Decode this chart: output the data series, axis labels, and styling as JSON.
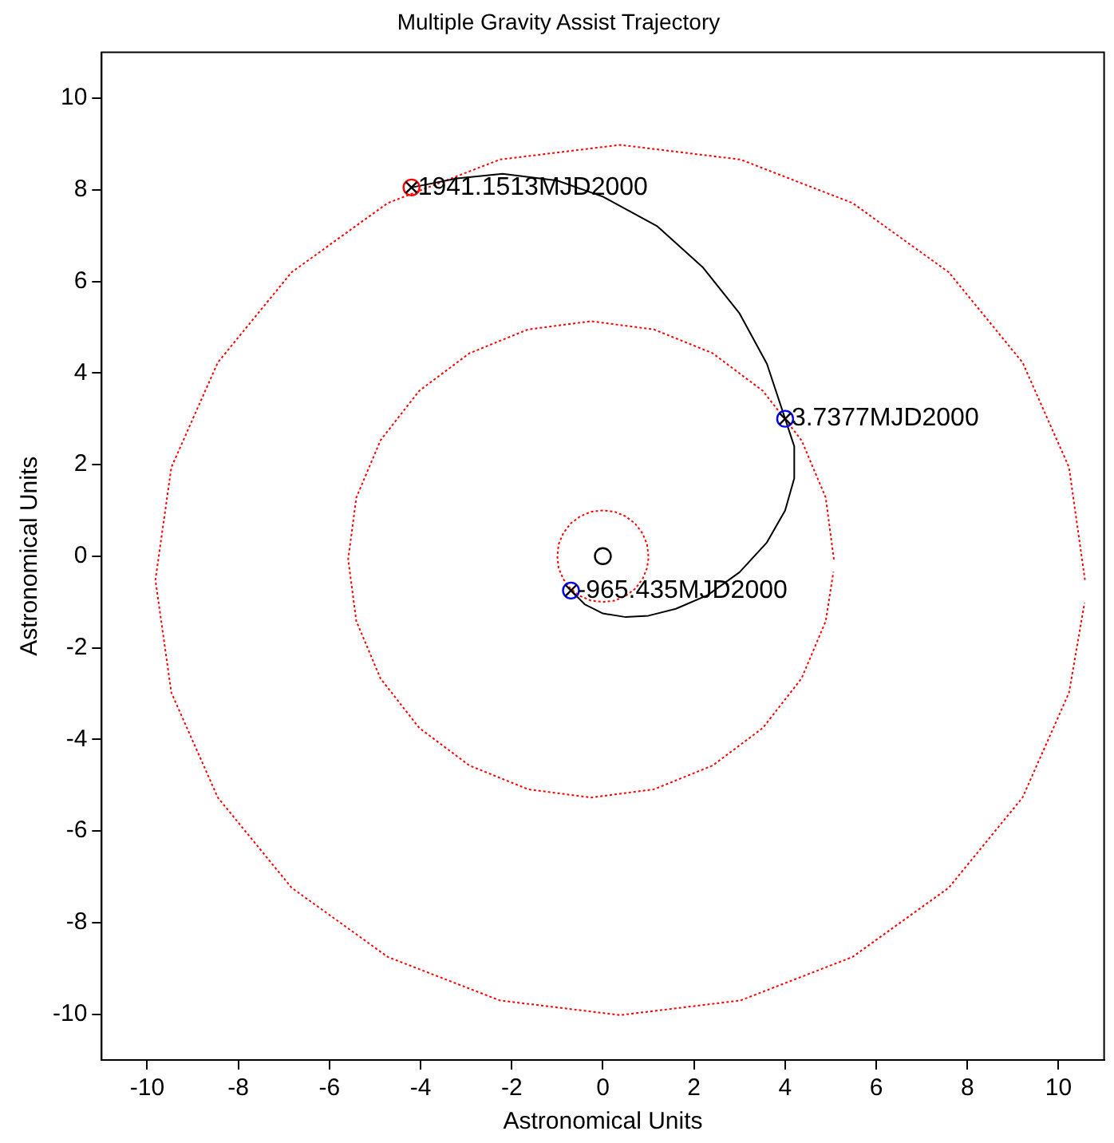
{
  "chart_data": {
    "type": "line",
    "title": "Multiple Gravity Assist Trajectory",
    "xlabel": "Astronomical Units",
    "ylabel": "Astronomical Units",
    "xlim": [
      -11,
      11
    ],
    "ylim": [
      -11,
      11
    ],
    "xticks": [
      -10,
      -8,
      -6,
      -4,
      -2,
      0,
      2,
      4,
      6,
      8,
      10
    ],
    "yticks": [
      -10,
      -8,
      -6,
      -4,
      -2,
      0,
      2,
      4,
      6,
      8,
      10
    ],
    "grid": false,
    "legend": false,
    "series": [
      {
        "type": "line",
        "line_style": "dotted",
        "marker": "none",
        "color": "#ff0000",
        "x": [
          1,
          0.97,
          0.87,
          0.71,
          0.5,
          0.26,
          0,
          -0.26,
          -0.5,
          -0.71,
          -0.87,
          -0.97,
          -1,
          -0.97,
          -0.87,
          -0.71,
          -0.5,
          -0.26,
          0,
          0.26,
          0.5,
          0.71,
          0.87,
          0.97,
          1
        ],
        "values": [
          0,
          0.26,
          0.5,
          0.71,
          0.87,
          0.97,
          1,
          0.97,
          0.87,
          0.71,
          0.5,
          0.26,
          0,
          -0.26,
          -0.5,
          -0.71,
          -0.87,
          -0.97,
          -1,
          -0.97,
          -0.87,
          -0.71,
          -0.5,
          -0.26,
          -0.05
        ]
      },
      {
        "type": "line",
        "line_style": "dotted",
        "marker": "none",
        "color": "#ff0000",
        "x": [
          5.07,
          4.89,
          4.36,
          3.51,
          2.41,
          1.12,
          -0.26,
          -1.64,
          -2.93,
          -4.03,
          -4.88,
          -5.41,
          -5.59,
          -5.41,
          -4.88,
          -4.03,
          -2.93,
          -1.64,
          -0.26,
          1.12,
          2.41,
          3.51,
          4.36,
          4.89,
          5.06
        ],
        "values": [
          -0.07,
          1.28,
          2.53,
          3.61,
          4.43,
          4.95,
          5.13,
          4.95,
          4.43,
          3.61,
          2.53,
          1.28,
          -0.07,
          -1.42,
          -2.67,
          -3.75,
          -4.57,
          -5.09,
          -5.27,
          -5.09,
          -4.57,
          -3.75,
          -2.67,
          -1.42,
          -0.34
        ]
      },
      {
        "type": "line",
        "line_style": "dotted",
        "marker": "none",
        "color": "#ff0000",
        "x": [
          10.58,
          10.23,
          9.21,
          7.59,
          5.48,
          3.02,
          0.38,
          -2.26,
          -4.72,
          -6.83,
          -8.45,
          -9.47,
          -9.82,
          -9.47,
          -8.45,
          -6.83,
          -4.72,
          -2.26,
          0.38,
          3.02,
          5.48,
          7.59,
          9.21,
          10.23,
          10.57
        ],
        "values": [
          -0.52,
          1.94,
          4.23,
          6.2,
          7.71,
          8.66,
          8.98,
          8.66,
          7.71,
          6.2,
          4.23,
          1.94,
          -0.52,
          -2.98,
          -5.27,
          -7.24,
          -8.75,
          -9.7,
          -10.02,
          -9.7,
          -8.75,
          -7.24,
          -5.27,
          -2.98,
          -1.02
        ]
      },
      {
        "type": "line",
        "line_style": "solid",
        "marker": "none",
        "color": "#000000",
        "x": [
          -0.7,
          -0.4,
          0,
          0.5,
          1,
          1.6,
          2.3,
          3,
          3.6,
          4,
          4.2,
          4.2,
          4,
          3.6,
          3,
          2.2,
          1.2,
          0,
          -1,
          -2.2,
          -3.2,
          -4.2
        ],
        "values": [
          -0.75,
          -1.05,
          -1.25,
          -1.33,
          -1.3,
          -1.15,
          -0.85,
          -0.35,
          0.3,
          1,
          1.7,
          2.4,
          3,
          4.2,
          5.3,
          6.3,
          7.2,
          7.85,
          8.2,
          8.35,
          8.25,
          8.05
        ]
      },
      {
        "type": "scatter",
        "marker": "circle",
        "color": "#000000",
        "x": [
          0
        ],
        "values": [
          0
        ]
      },
      {
        "type": "scatter",
        "marker": "circle",
        "color": "#0000ff",
        "x": [
          -0.7,
          4
        ],
        "values": [
          -0.75,
          3
        ]
      },
      {
        "type": "scatter",
        "marker": "circle",
        "color": "#ff0000",
        "x": [
          -4.2
        ],
        "values": [
          8.05
        ]
      },
      {
        "type": "scatter",
        "marker": "cross",
        "color": "#000000",
        "x": [
          -0.7,
          4,
          -4.2
        ],
        "values": [
          -0.75,
          3,
          8.05
        ]
      }
    ],
    "annotations": [
      {
        "text": "-965.435MJD2000",
        "x": -0.7,
        "y": -0.75
      },
      {
        "text": "3.7377MJD2000",
        "x": 4,
        "y": 3
      },
      {
        "text": "1941.1513MJD2000",
        "x": -4.2,
        "y": 8.05
      }
    ]
  }
}
